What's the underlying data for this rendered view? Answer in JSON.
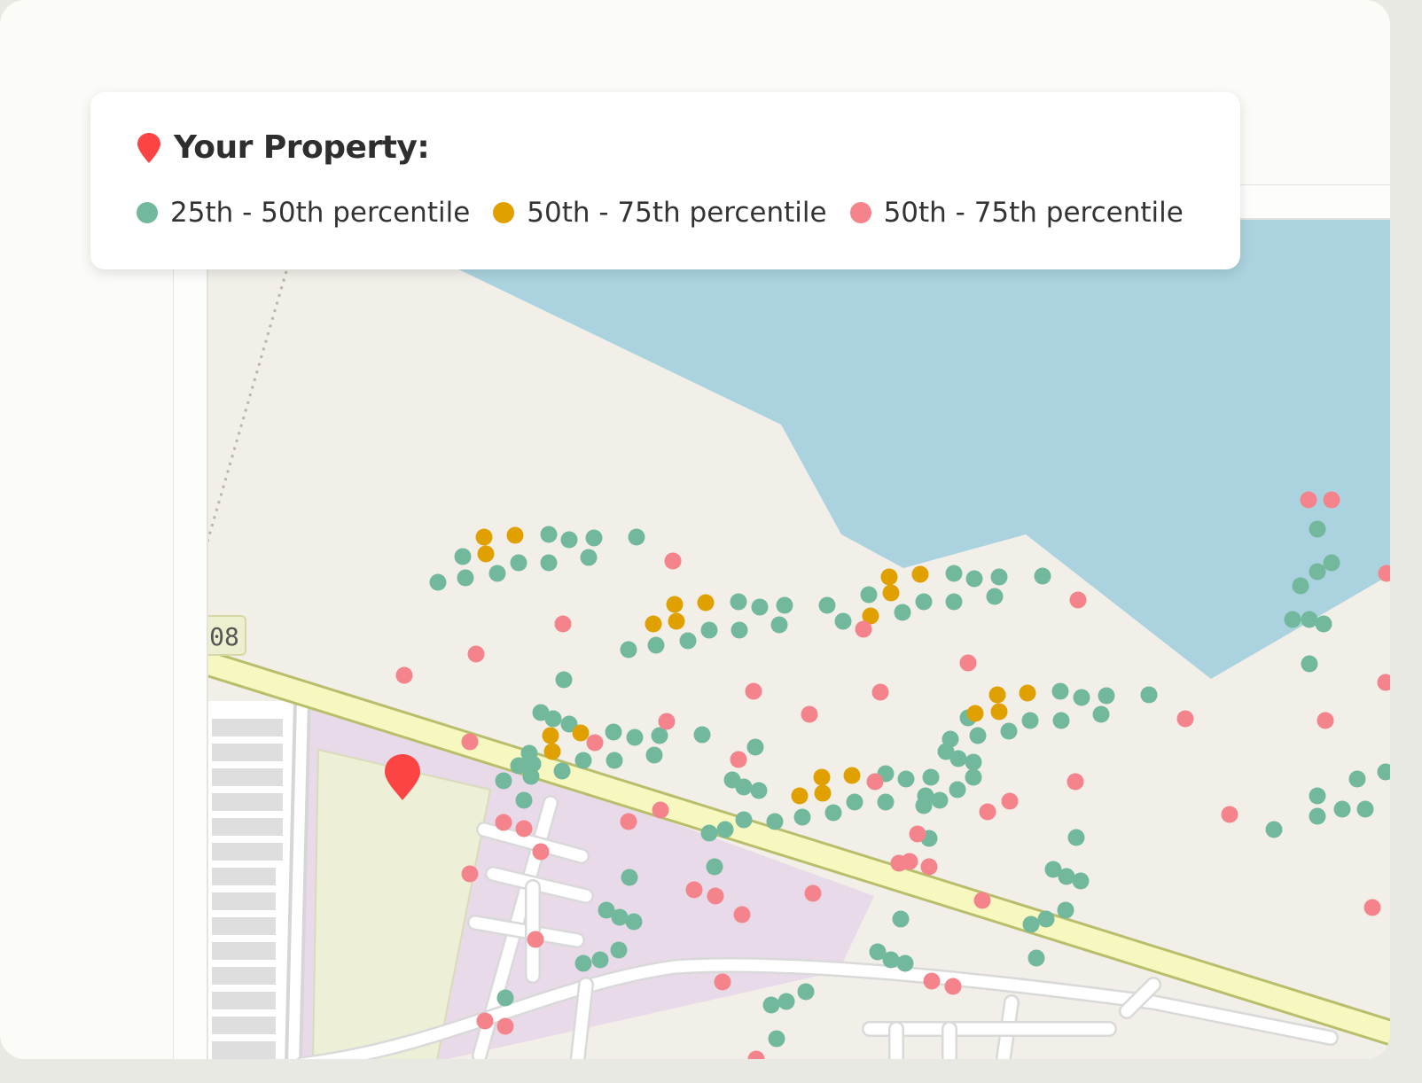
{
  "legend": {
    "title": "Your Property:",
    "property_icon": "map-pin-icon",
    "property_color": "#fc4445",
    "items": [
      {
        "label": "25th - 50th percentile",
        "color": "#72b89c"
      },
      {
        "label": "50th - 75th percentile",
        "color": "#e0a000"
      },
      {
        "label": "50th - 75th percentile",
        "color": "#f4838b"
      }
    ]
  },
  "map": {
    "road_shield": "08",
    "colors": {
      "land": "#f2efe9",
      "water": "#aad3df",
      "highway": "#f7f8c0",
      "residential": "#e8dae8",
      "park": "#edf0d6",
      "parking": "#dedede"
    }
  }
}
